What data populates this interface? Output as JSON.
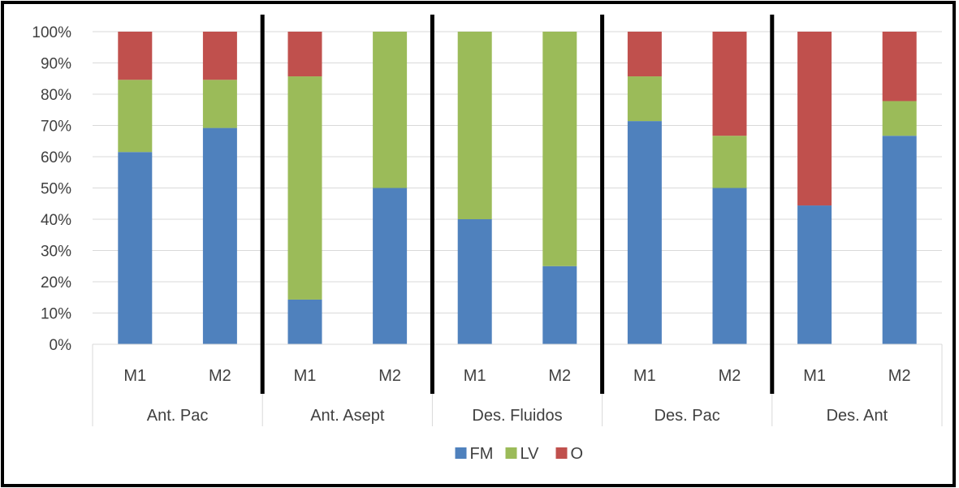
{
  "chart_data": {
    "type": "bar",
    "stacked": "percent",
    "title": "",
    "xlabel": "",
    "ylabel": "",
    "ylim": [
      0,
      100
    ],
    "y_ticks": [
      "0%",
      "10%",
      "20%",
      "30%",
      "40%",
      "50%",
      "60%",
      "70%",
      "80%",
      "90%",
      "100%"
    ],
    "y_grid": true,
    "legend_position": "bottom",
    "groups": [
      {
        "label": "Ant. Pac",
        "bars": [
          "M1",
          "M2"
        ]
      },
      {
        "label": "Ant. Asept",
        "bars": [
          "M1",
          "M2"
        ]
      },
      {
        "label": "Des. Fluidos",
        "bars": [
          "M1",
          "M2"
        ]
      },
      {
        "label": "Des. Pac",
        "bars": [
          "M1",
          "M2"
        ]
      },
      {
        "label": "Des. Ant",
        "bars": [
          "M1",
          "M2"
        ]
      }
    ],
    "series": [
      {
        "name": "FM",
        "color": "#4f81bd",
        "values": [
          61.5,
          69.2,
          14.3,
          50,
          40,
          25,
          71.4,
          50,
          44.4,
          66.7
        ]
      },
      {
        "name": "LV",
        "color": "#9bbb59",
        "values": [
          23.1,
          15.4,
          71.4,
          50,
          60,
          75,
          14.3,
          16.7,
          0,
          11.1
        ]
      },
      {
        "name": "O",
        "color": "#c0504d",
        "values": [
          15.4,
          15.4,
          14.3,
          0,
          0,
          0,
          14.3,
          33.3,
          55.6,
          22.2
        ]
      }
    ]
  }
}
